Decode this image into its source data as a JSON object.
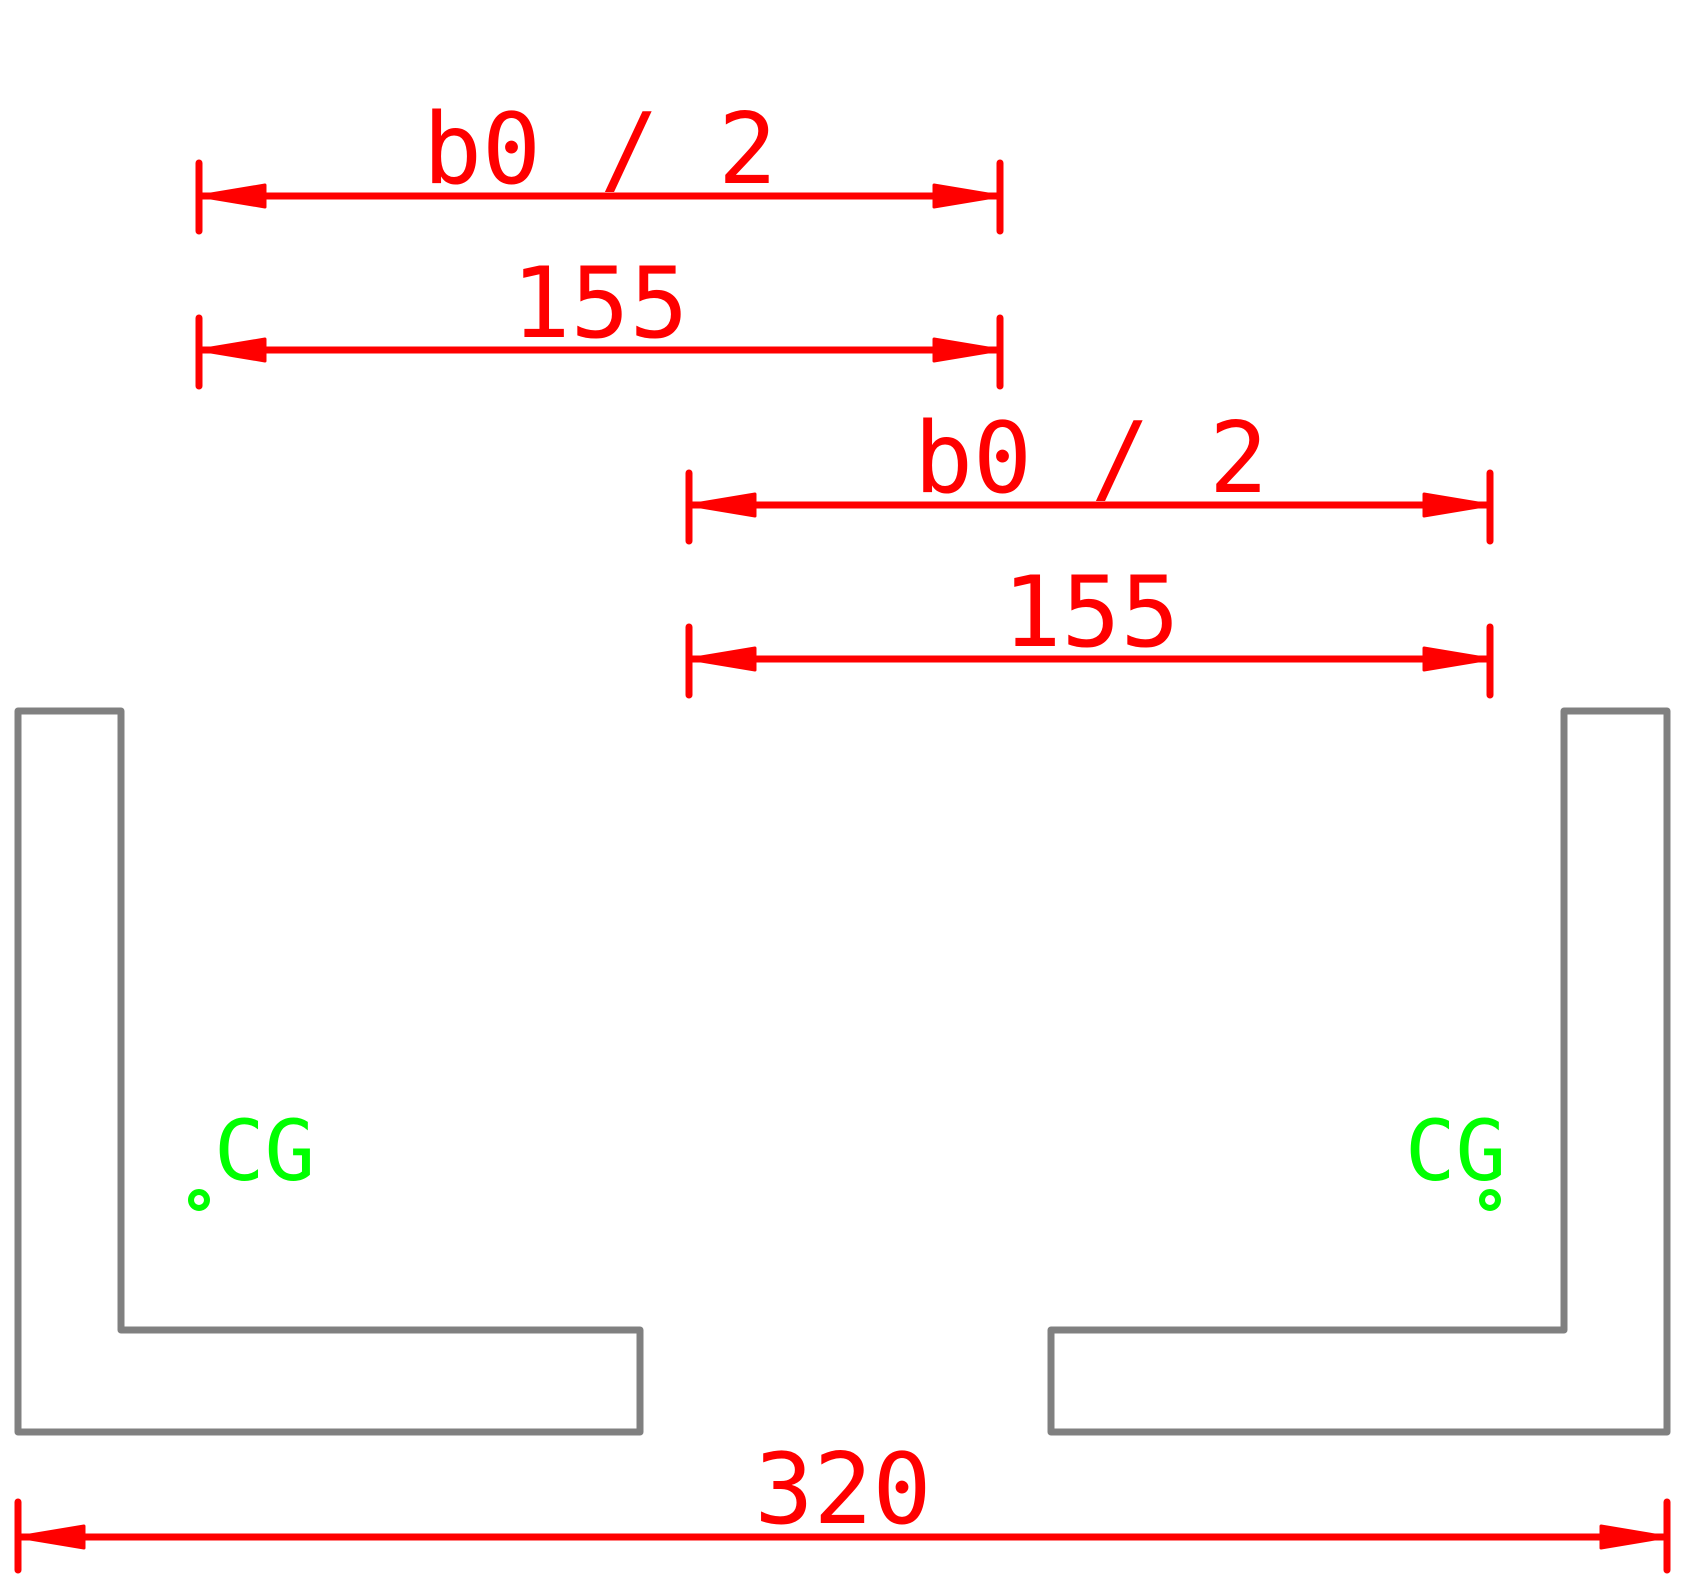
{
  "dimensions": {
    "left_symbolic": "b0 / 2",
    "left_value": "155",
    "right_symbolic": "b0 / 2",
    "right_value": "155",
    "overall": "320"
  },
  "centroids": {
    "left_label": "CG",
    "right_label": "CG"
  },
  "colors": {
    "dimension": "#ff0000",
    "profile": "#808080",
    "centroid": "#00ff00",
    "background": "#ffffff"
  }
}
